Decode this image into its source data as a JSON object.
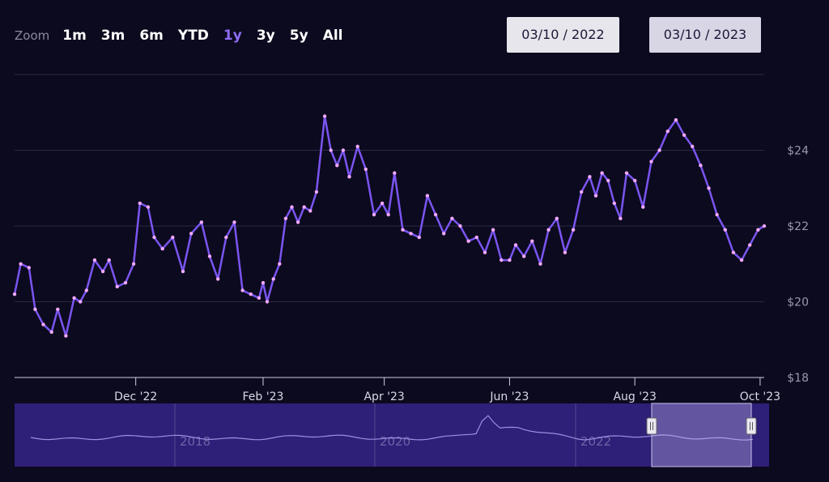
{
  "range_selector": {
    "label": "Zoom",
    "buttons": [
      "1m",
      "3m",
      "6m",
      "YTD",
      "1y",
      "3y",
      "5y",
      "All"
    ],
    "active": "1y",
    "from_date": "03/10 / 2022",
    "to_date": "03/10 / 2023"
  },
  "colors": {
    "background": "#0c0a1f",
    "line": "#7a55f0",
    "marker": "#f0a8ff",
    "navigator_bg": "#2e1f78",
    "active_button": "#8f6cf5"
  },
  "chart_data": {
    "type": "line",
    "title": "",
    "xlabel": "",
    "ylabel": "",
    "y_axis_side": "right",
    "y_tick_labels": [
      "$18",
      "$20",
      "$22",
      "$24"
    ],
    "y_ticks": [
      18,
      20,
      22,
      24
    ],
    "ylim": [
      18,
      26
    ],
    "xlim": [
      "2022-10-03",
      "2023-10-03"
    ],
    "x_tick_labels": [
      "Dec '22",
      "Feb '23",
      "Apr '23",
      "Jun '23",
      "Aug '23",
      "Oct '23"
    ],
    "x_ticks": [
      "2022-12-01",
      "2023-02-01",
      "2023-04-01",
      "2023-06-01",
      "2023-08-01",
      "2023-10-01"
    ],
    "grid": true,
    "legend": false,
    "markers": true,
    "series": [
      {
        "x": [
          "2022-10-03",
          "2022-10-06",
          "2022-10-10",
          "2022-10-13",
          "2022-10-17",
          "2022-10-21",
          "2022-10-24",
          "2022-10-28",
          "2022-11-01",
          "2022-11-04",
          "2022-11-07",
          "2022-11-11",
          "2022-11-15",
          "2022-11-18",
          "2022-11-22",
          "2022-11-26",
          "2022-11-30",
          "2022-12-03",
          "2022-12-07",
          "2022-12-10",
          "2022-12-14",
          "2022-12-19",
          "2022-12-24",
          "2022-12-28",
          "2023-01-02",
          "2023-01-06",
          "2023-01-10",
          "2023-01-14",
          "2023-01-18",
          "2023-01-22",
          "2023-01-26",
          "2023-01-30",
          "2023-02-01",
          "2023-02-03",
          "2023-02-06",
          "2023-02-09",
          "2023-02-12",
          "2023-02-15",
          "2023-02-18",
          "2023-02-21",
          "2023-02-24",
          "2023-02-27",
          "2023-03-03",
          "2023-03-06",
          "2023-03-09",
          "2023-03-12",
          "2023-03-15",
          "2023-03-19",
          "2023-03-23",
          "2023-03-27",
          "2023-03-31",
          "2023-04-03",
          "2023-04-06",
          "2023-04-10",
          "2023-04-14",
          "2023-04-18",
          "2023-04-22",
          "2023-04-26",
          "2023-04-30",
          "2023-05-04",
          "2023-05-08",
          "2023-05-12",
          "2023-05-16",
          "2023-05-20",
          "2023-05-24",
          "2023-05-28",
          "2023-06-01",
          "2023-06-04",
          "2023-06-08",
          "2023-06-12",
          "2023-06-16",
          "2023-06-20",
          "2023-06-24",
          "2023-06-28",
          "2023-07-02",
          "2023-07-06",
          "2023-07-10",
          "2023-07-13",
          "2023-07-16",
          "2023-07-19",
          "2023-07-22",
          "2023-07-25",
          "2023-07-28",
          "2023-08-01",
          "2023-08-05",
          "2023-08-09",
          "2023-08-13",
          "2023-08-17",
          "2023-08-21",
          "2023-08-25",
          "2023-08-29",
          "2023-09-02",
          "2023-09-06",
          "2023-09-10",
          "2023-09-14",
          "2023-09-18",
          "2023-09-22",
          "2023-09-26",
          "2023-09-30",
          "2023-10-03"
        ],
        "values": [
          20.2,
          21.0,
          20.9,
          19.8,
          19.4,
          19.2,
          19.8,
          19.1,
          20.1,
          20.0,
          20.3,
          21.1,
          20.8,
          21.1,
          20.4,
          20.5,
          21.0,
          22.6,
          22.5,
          21.7,
          21.4,
          21.7,
          20.8,
          21.8,
          22.1,
          21.2,
          20.6,
          21.7,
          22.1,
          20.3,
          20.2,
          20.1,
          20.5,
          20.0,
          20.6,
          21.0,
          22.2,
          22.5,
          22.1,
          22.5,
          22.4,
          22.9,
          24.9,
          24.0,
          23.6,
          24.0,
          23.3,
          24.1,
          23.5,
          22.3,
          22.6,
          22.3,
          23.4,
          21.9,
          21.8,
          21.7,
          22.8,
          22.3,
          21.8,
          22.2,
          22.0,
          21.6,
          21.7,
          21.3,
          21.9,
          21.1,
          21.1,
          21.5,
          21.2,
          21.6,
          21.0,
          21.9,
          22.2,
          21.3,
          21.9,
          22.9,
          23.3,
          22.8,
          23.4,
          23.2,
          22.6,
          22.2,
          23.4,
          23.2,
          22.5,
          23.7,
          24.0,
          24.5,
          24.8,
          24.4,
          24.1,
          23.6,
          23.0,
          22.3,
          21.9,
          21.3,
          21.1,
          21.5,
          21.9,
          22.0
        ]
      }
    ]
  },
  "navigator": {
    "tick_labels": [
      "2018",
      "2020",
      "2022"
    ],
    "range_start_label": "",
    "range_end_label": ""
  }
}
